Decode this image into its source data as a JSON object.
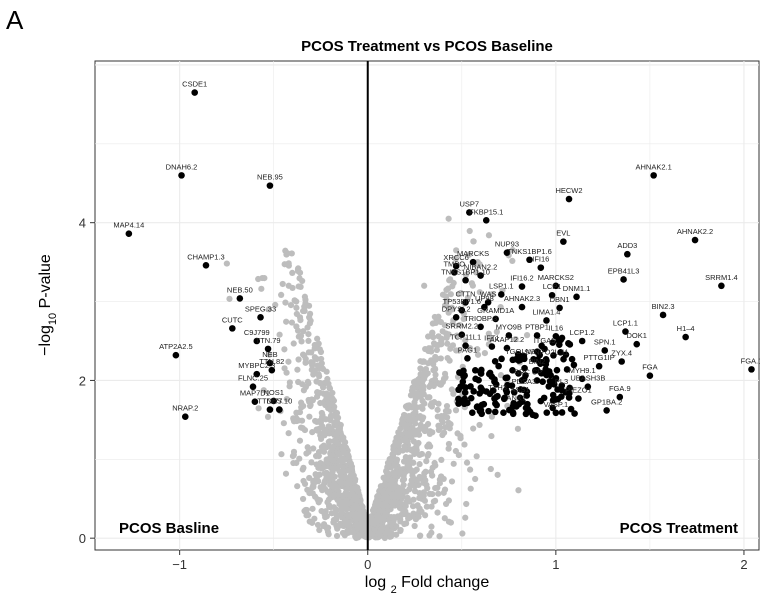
{
  "chart_data": {
    "type": "scatter",
    "panel_label": "A",
    "title": "PCOS Treatment vs PCOS Baseline",
    "xlabel": "log2 Fold change",
    "ylabel": "−log10 P-value",
    "xlim": [
      -1.45,
      2.08
    ],
    "ylim": [
      -0.15,
      6.05
    ],
    "x_ticks": [
      -1,
      0,
      1,
      2
    ],
    "y_ticks": [
      0,
      2,
      4
    ],
    "x_tick_labels": [
      "−1",
      "0",
      "1",
      "2"
    ],
    "y_tick_labels": [
      "0",
      "2",
      "4"
    ],
    "grid": true,
    "corner_left": "PCOS Basline",
    "corner_right": "PCOS Treatment",
    "colors": {
      "significant": "#000000",
      "nonsignificant": "#bdbdbd",
      "zero_line": "#000000"
    },
    "labeled_points": [
      {
        "label": "CSDE1",
        "x": -0.92,
        "y": 5.65
      },
      {
        "label": "DNAH6.2",
        "x": -0.99,
        "y": 4.6
      },
      {
        "label": "NEB.95",
        "x": -0.52,
        "y": 4.47
      },
      {
        "label": "MAP4.14",
        "x": -1.27,
        "y": 3.86
      },
      {
        "label": "CHAMP1.3",
        "x": -0.86,
        "y": 3.46
      },
      {
        "label": "NEB.50",
        "x": -0.68,
        "y": 3.04
      },
      {
        "label": "SPEG.33",
        "x": -0.57,
        "y": 2.8
      },
      {
        "label": "CUTC",
        "x": -0.72,
        "y": 2.66
      },
      {
        "label": "C9J799",
        "x": -0.59,
        "y": 2.5
      },
      {
        "label": "TTN.79",
        "x": -0.53,
        "y": 2.4
      },
      {
        "label": "ATP2A2.5",
        "x": -1.02,
        "y": 2.32
      },
      {
        "label": "NEB",
        "x": -0.52,
        "y": 2.22
      },
      {
        "label": "TTN.82",
        "x": -0.51,
        "y": 2.13
      },
      {
        "label": "MYBPC2.3",
        "x": -0.59,
        "y": 2.08
      },
      {
        "label": "FLNC.25",
        "x": -0.61,
        "y": 1.92
      },
      {
        "label": "MAP7D1",
        "x": -0.6,
        "y": 1.73
      },
      {
        "label": "NOS1",
        "x": -0.5,
        "y": 1.74
      },
      {
        "label": "TTN.77",
        "x": -0.52,
        "y": 1.63
      },
      {
        "label": "DES.10",
        "x": -0.47,
        "y": 1.63
      },
      {
        "label": "NRAP.2",
        "x": -0.97,
        "y": 1.54
      },
      {
        "label": "AHNAK2.1",
        "x": 1.52,
        "y": 4.6
      },
      {
        "label": "HECW2",
        "x": 1.07,
        "y": 4.3
      },
      {
        "label": "USP7",
        "x": 0.54,
        "y": 4.13
      },
      {
        "label": "FKBP15.1",
        "x": 0.63,
        "y": 4.03
      },
      {
        "label": "AHNAK2.2",
        "x": 1.74,
        "y": 3.78
      },
      {
        "label": "EVL",
        "x": 1.04,
        "y": 3.76
      },
      {
        "label": "NUP93",
        "x": 0.74,
        "y": 3.62
      },
      {
        "label": "ADD3",
        "x": 1.38,
        "y": 3.6
      },
      {
        "label": "TNKS1BP1.6",
        "x": 0.86,
        "y": 3.53
      },
      {
        "label": "MARCKS",
        "x": 0.56,
        "y": 3.5
      },
      {
        "label": "XRCC6",
        "x": 0.47,
        "y": 3.45
      },
      {
        "label": "IFI16",
        "x": 0.92,
        "y": 3.43
      },
      {
        "label": "TMPO",
        "x": 0.46,
        "y": 3.37
      },
      {
        "label": "NIBAN2.2",
        "x": 0.6,
        "y": 3.33
      },
      {
        "label": "EPB41L3",
        "x": 1.36,
        "y": 3.28
      },
      {
        "label": "TNKS1BP1.10",
        "x": 0.52,
        "y": 3.27
      },
      {
        "label": "IFI16.2",
        "x": 0.82,
        "y": 3.19
      },
      {
        "label": "MARCKS2",
        "x": 1.0,
        "y": 3.2
      },
      {
        "label": "SRRM1.4",
        "x": 1.88,
        "y": 3.2
      },
      {
        "label": "LSP1.1",
        "x": 0.71,
        "y": 3.09
      },
      {
        "label": "LCP1",
        "x": 0.98,
        "y": 3.08
      },
      {
        "label": "DNM1.1",
        "x": 1.11,
        "y": 3.06
      },
      {
        "label": "WAS",
        "x": 0.64,
        "y": 2.99
      },
      {
        "label": "CTTN",
        "x": 0.52,
        "y": 2.99
      },
      {
        "label": "UP98",
        "x": 0.62,
        "y": 2.93
      },
      {
        "label": "AHNAK2.3",
        "x": 0.82,
        "y": 2.93
      },
      {
        "label": "DBN1",
        "x": 1.02,
        "y": 2.92
      },
      {
        "label": "TP53BP1.6",
        "x": 0.5,
        "y": 2.89
      },
      {
        "label": "BIN2.3",
        "x": 1.57,
        "y": 2.83
      },
      {
        "label": "DPYSL2",
        "x": 0.47,
        "y": 2.8
      },
      {
        "label": "GRAMD1A",
        "x": 0.68,
        "y": 2.78
      },
      {
        "label": "LIMA1.4",
        "x": 0.95,
        "y": 2.76
      },
      {
        "label": "TRIOBP.3",
        "x": 0.6,
        "y": 2.68
      },
      {
        "label": "LCP1.1",
        "x": 1.37,
        "y": 2.62
      },
      {
        "label": "SRRM2.2",
        "x": 0.5,
        "y": 2.58
      },
      {
        "label": "MYO9B",
        "x": 0.75,
        "y": 2.57
      },
      {
        "label": "PTBP1",
        "x": 0.9,
        "y": 2.57
      },
      {
        "label": "IL16",
        "x": 1.0,
        "y": 2.56
      },
      {
        "label": "H1–4",
        "x": 1.69,
        "y": 2.55
      },
      {
        "label": "LCP1.2",
        "x": 1.14,
        "y": 2.5
      },
      {
        "label": "DOK1",
        "x": 1.43,
        "y": 2.46
      },
      {
        "label": "TCP11L1",
        "x": 0.52,
        "y": 2.44
      },
      {
        "label": "IFT1",
        "x": 0.66,
        "y": 2.43
      },
      {
        "label": "AKAP12.2",
        "x": 0.74,
        "y": 2.41
      },
      {
        "label": "ITGA5",
        "x": 0.94,
        "y": 2.4
      },
      {
        "label": "SPN.1",
        "x": 1.26,
        "y": 2.38
      },
      {
        "label": "PAG1",
        "x": 0.53,
        "y": 2.28
      },
      {
        "label": "TGOLN2",
        "x": 0.81,
        "y": 2.26
      },
      {
        "label": "SYNPO2L.11",
        "x": 0.95,
        "y": 2.25
      },
      {
        "label": "ZYX.4",
        "x": 1.35,
        "y": 2.24
      },
      {
        "label": "PTTG1IP",
        "x": 1.23,
        "y": 2.18
      },
      {
        "label": "FGA.1",
        "x": 2.04,
        "y": 2.14
      },
      {
        "label": "BIN2",
        "x": 0.9,
        "y": 2.13
      },
      {
        "label": "FGA",
        "x": 1.5,
        "y": 2.06
      },
      {
        "label": "MYH9.1",
        "x": 1.14,
        "y": 2.02
      },
      {
        "label": "SRC",
        "x": 0.82,
        "y": 2.0
      },
      {
        "label": "CP",
        "x": 0.9,
        "y": 2.0
      },
      {
        "label": "UBASH3B",
        "x": 1.17,
        "y": 1.92
      },
      {
        "label": "PDSA3",
        "x": 0.83,
        "y": 1.88
      },
      {
        "label": "PL3",
        "x": 1.03,
        "y": 1.88
      },
      {
        "label": "FGA.9",
        "x": 1.34,
        "y": 1.79
      },
      {
        "label": "TTH3",
        "x": 0.69,
        "y": 1.8
      },
      {
        "label": "ASS1",
        "x": 0.81,
        "y": 1.78
      },
      {
        "label": "ANK1",
        "x": 0.79,
        "y": 1.67
      },
      {
        "label": "VASP.1",
        "x": 1.0,
        "y": 1.59
      },
      {
        "label": "GP1BA.2",
        "x": 1.27,
        "y": 1.62
      },
      {
        "label": "PIEZO1",
        "x": 1.12,
        "y": 1.77
      }
    ]
  }
}
